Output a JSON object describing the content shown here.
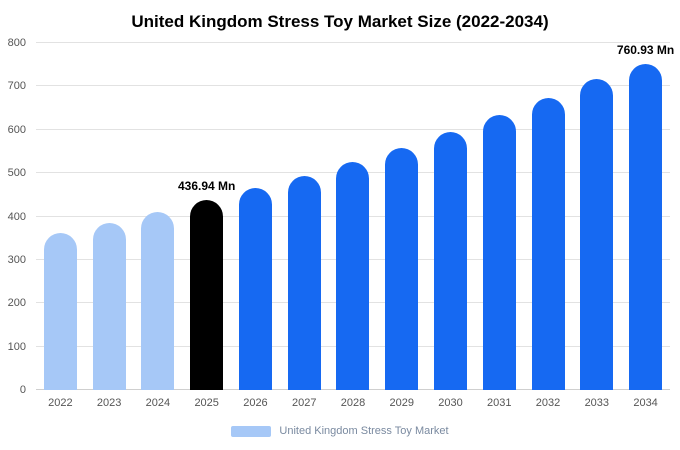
{
  "page": {
    "title": "United Kingdom Stress Toy Market Size (2022-2034)"
  },
  "legend": {
    "label": "United Kingdom Stress Toy Market",
    "swatch_color": "#a6c8f7"
  },
  "colors": {
    "historical_bar": "#a6c8f7",
    "highlight_bar": "#000000",
    "forecast_bar": "#1669f2",
    "gridline": "#e2e2e2",
    "axis_text": "#555555",
    "legend_text": "#7a8aa0"
  },
  "chart_data": {
    "type": "bar",
    "title": "United Kingdom Stress Toy Market Size (2022-2034)",
    "categories": [
      "2022",
      "2023",
      "2024",
      "2025",
      "2026",
      "2027",
      "2028",
      "2029",
      "2030",
      "2031",
      "2032",
      "2033",
      "2034"
    ],
    "values": [
      363,
      386,
      411,
      436.94,
      465,
      494,
      526,
      559,
      595,
      633,
      673,
      716,
      760.93
    ],
    "bar_colors": [
      "#a6c8f7",
      "#a6c8f7",
      "#a6c8f7",
      "#000000",
      "#1669f2",
      "#1669f2",
      "#1669f2",
      "#1669f2",
      "#1669f2",
      "#1669f2",
      "#1669f2",
      "#1669f2",
      "#1669f2"
    ],
    "annotations": [
      {
        "index": 3,
        "category": "2025",
        "label": "436.94 Mn"
      },
      {
        "index": 12,
        "category": "2034",
        "label": "760.93 Mn"
      }
    ],
    "xlabel": "",
    "ylabel": "",
    "ylim": [
      0,
      800
    ],
    "yticks": [
      0,
      100,
      200,
      300,
      400,
      500,
      600,
      700,
      800
    ],
    "grid": true,
    "legend_entries": [
      "United Kingdom Stress Toy Market"
    ],
    "legend_position": "bottom",
    "unit": "Mn"
  }
}
